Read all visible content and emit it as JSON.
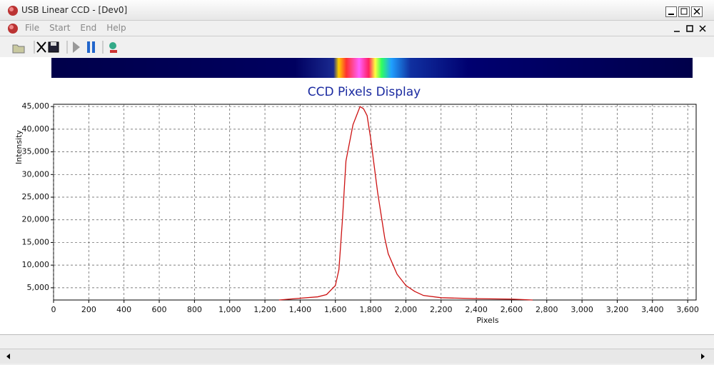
{
  "window": {
    "title": "USB Linear CCD - [Dev0]",
    "menu": [
      "File",
      "Start",
      "End",
      "Help"
    ]
  },
  "chart_data": {
    "type": "line",
    "title": "CCD Pixels Display",
    "x_label": "Pixels",
    "y_label": "Intensity",
    "x": [
      1280,
      1400,
      1500,
      1550,
      1600,
      1620,
      1640,
      1660,
      1680,
      1700,
      1720,
      1740,
      1760,
      1780,
      1800,
      1820,
      1840,
      1860,
      1880,
      1900,
      1950,
      2000,
      2050,
      2100,
      2200,
      2400,
      2600,
      2720
    ],
    "series": [
      {
        "color": "#cc1111",
        "values": [
          2300,
          2700,
          3000,
          3500,
          5500,
          9000,
          20000,
          33000,
          37000,
          41000,
          43000,
          45000,
          44500,
          43000,
          38000,
          32000,
          26000,
          21000,
          16000,
          12500,
          8000,
          5500,
          4200,
          3300,
          2800,
          2600,
          2500,
          2300
        ]
      }
    ],
    "xlim": [
      0,
      3648
    ],
    "ylim": [
      2300,
      45500
    ],
    "xticks": [
      0,
      200,
      400,
      600,
      800,
      {
        "value": 1000,
        "label": "1,000"
      },
      {
        "value": 1200,
        "label": "1,200"
      },
      {
        "value": 1400,
        "label": "1,400"
      },
      {
        "value": 1600,
        "label": "1,600"
      },
      {
        "value": 1800,
        "label": "1,800"
      },
      {
        "value": 2000,
        "label": "2,000"
      },
      {
        "value": 2200,
        "label": "2,200"
      },
      {
        "value": 2400,
        "label": "2,400"
      },
      {
        "value": 2600,
        "label": "2,600"
      },
      {
        "value": 2800,
        "label": "2,800"
      },
      {
        "value": 3000,
        "label": "3,000"
      },
      {
        "value": 3200,
        "label": "3,200"
      },
      {
        "value": 3400,
        "label": "3,400"
      },
      {
        "value": 3600,
        "label": "3,600"
      }
    ],
    "yticks": [
      {
        "value": 5000,
        "label": "5,000"
      },
      {
        "value": 10000,
        "label": "10,000"
      },
      {
        "value": 15000,
        "label": "15,000"
      },
      {
        "value": 20000,
        "label": "20,000"
      },
      {
        "value": 25000,
        "label": "25,000"
      },
      {
        "value": 30000,
        "label": "30,000"
      },
      {
        "value": 35000,
        "label": "35,000"
      },
      {
        "value": 40000,
        "label": "40,000"
      },
      {
        "value": 45000,
        "label": "45,000"
      }
    ],
    "grid": true
  }
}
